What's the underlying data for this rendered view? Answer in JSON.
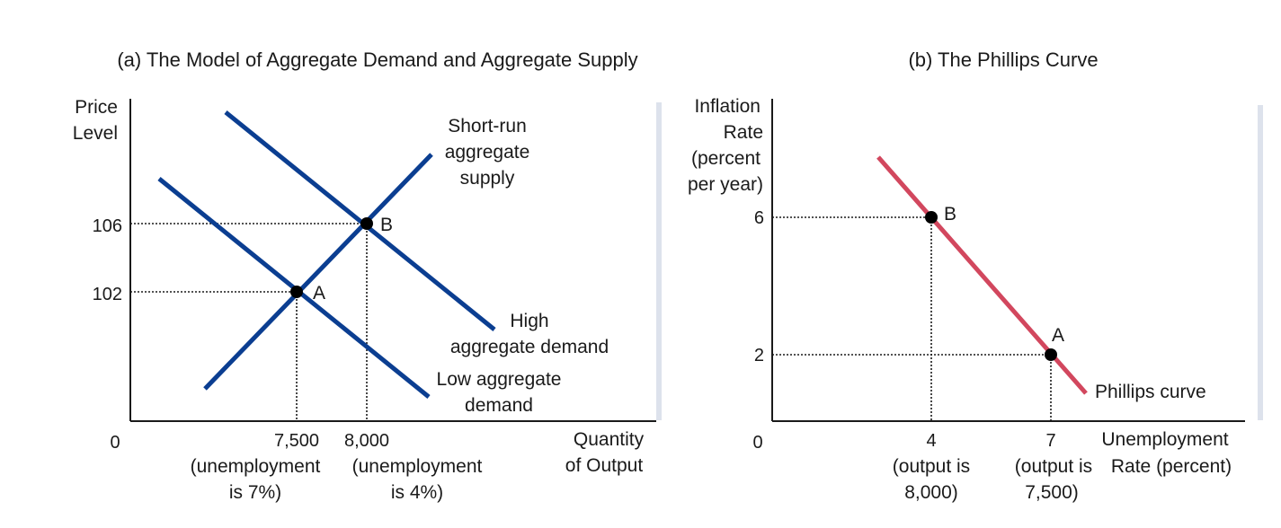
{
  "colors": {
    "ad_as_curves": "#0b3e91",
    "phillips_curve": "#d2475e",
    "panel_shadow": "#dde2ec",
    "axis": "#1a1a1a"
  },
  "chart_data": [
    {
      "type": "line",
      "title": "(a) The Model of Aggregate Demand and Aggregate Supply",
      "ylabel_lines": [
        "Price",
        "Level"
      ],
      "xlabel_lines": [
        "Quantity",
        "of Output"
      ],
      "origin_label": "0",
      "y_ticks": [
        {
          "value": 102,
          "label": "102"
        },
        {
          "value": 106,
          "label": "106"
        }
      ],
      "x_ticks": [
        {
          "value": 7500,
          "label": "7,500",
          "sub_lines": [
            "(unemployment",
            "is 7%)"
          ]
        },
        {
          "value": 8000,
          "label": "8,000",
          "sub_lines": [
            "(unemployment",
            "is 4%)"
          ]
        }
      ],
      "series": [
        {
          "key": "sras",
          "label_lines": [
            "Short-run",
            "aggregate",
            "supply"
          ],
          "slope": "upward"
        },
        {
          "key": "high_ad",
          "label_lines": [
            "High",
            "aggregate demand"
          ],
          "slope": "downward"
        },
        {
          "key": "low_ad",
          "label_lines": [
            "Low aggregate",
            "demand"
          ],
          "slope": "downward"
        }
      ],
      "points": [
        {
          "label": "A",
          "x": 7500,
          "y": 102
        },
        {
          "label": "B",
          "x": 8000,
          "y": 106
        }
      ],
      "dotted_guides": true,
      "grid": false
    },
    {
      "type": "line",
      "title": "(b) The Phillips Curve",
      "ylabel_lines": [
        "Inflation",
        "Rate",
        "(percent",
        "per year)"
      ],
      "xlabel_lines": [
        "Unemployment",
        "Rate (percent)"
      ],
      "origin_label": "0",
      "y_ticks": [
        {
          "value": 2,
          "label": "2"
        },
        {
          "value": 6,
          "label": "6"
        }
      ],
      "x_ticks": [
        {
          "value": 4,
          "label": "4",
          "sub_lines": [
            "(output is",
            "8,000)"
          ]
        },
        {
          "value": 7,
          "label": "7",
          "sub_lines": [
            "(output is",
            "7,500)"
          ]
        }
      ],
      "series": [
        {
          "key": "phillips",
          "label_lines": [
            "Phillips curve"
          ],
          "slope": "downward"
        }
      ],
      "points": [
        {
          "label": "B",
          "x": 4,
          "y": 6
        },
        {
          "label": "A",
          "x": 7,
          "y": 2
        }
      ],
      "dotted_guides": true,
      "grid": false
    }
  ]
}
